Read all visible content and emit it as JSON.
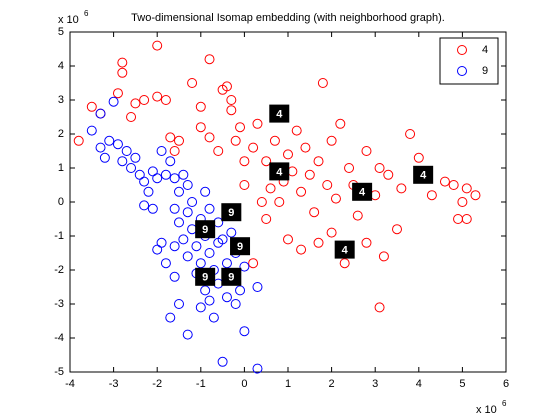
{
  "chart_data": {
    "type": "scatter",
    "title": "Two-dimensional Isomap embedding (with neighborhood graph).",
    "y_scale_label": {
      "base": "x 10",
      "power": "6"
    },
    "x_scale_label": {
      "base": "x 10",
      "power": "6"
    },
    "xlim": [
      -4,
      6
    ],
    "xticks": [
      -4,
      -3,
      -2,
      -1,
      0,
      1,
      2,
      3,
      4,
      5,
      6
    ],
    "ylim": [
      -5,
      5
    ],
    "yticks": [
      -5,
      -4,
      -3,
      -2,
      -1,
      0,
      1,
      2,
      3,
      4,
      5
    ],
    "grid": false,
    "legend": "northeast",
    "series": [
      {
        "name": "4",
        "color": "#ff0000",
        "x": [
          -3.8,
          -3.5,
          -3.3,
          -2.9,
          -2.8,
          -2.8,
          -2.6,
          -2.5,
          -2.3,
          -2.0,
          -2.0,
          -1.8,
          -1.7,
          -1.6,
          -1.5,
          -1.2,
          -1.0,
          -1.0,
          -0.8,
          -0.8,
          -0.6,
          -0.5,
          -0.4,
          -0.3,
          -0.3,
          -0.2,
          -0.1,
          0.0,
          0.0,
          0.2,
          0.3,
          0.4,
          0.5,
          0.5,
          0.6,
          0.7,
          0.8,
          0.9,
          1.0,
          1.0,
          1.1,
          1.2,
          1.3,
          1.3,
          1.4,
          1.5,
          1.6,
          1.7,
          1.8,
          1.9,
          2.0,
          2.0,
          2.1,
          2.2,
          2.3,
          2.4,
          2.5,
          2.6,
          2.8,
          3.0,
          3.1,
          3.2,
          3.3,
          3.1,
          3.5,
          3.6,
          3.8,
          4.0,
          4.0,
          4.3,
          4.6,
          4.8,
          4.9,
          5.0,
          5.1,
          5.1,
          5.3,
          0.2,
          1.7,
          2.8
        ],
        "values": [
          1.8,
          2.8,
          2.6,
          3.2,
          4.1,
          3.8,
          2.5,
          2.9,
          3.0,
          4.6,
          3.1,
          3.0,
          1.9,
          1.5,
          1.8,
          3.5,
          2.8,
          2.2,
          4.2,
          1.9,
          1.5,
          3.3,
          3.4,
          3.0,
          2.7,
          1.8,
          2.2,
          1.2,
          0.5,
          1.6,
          2.3,
          0.0,
          1.2,
          -0.5,
          0.4,
          1.8,
          0.0,
          0.6,
          -1.1,
          1.4,
          0.9,
          2.1,
          -1.4,
          0.3,
          1.6,
          0.8,
          -0.3,
          1.2,
          3.5,
          0.5,
          -0.9,
          1.8,
          0.1,
          2.3,
          -1.8,
          1.0,
          0.5,
          -0.4,
          1.5,
          0.2,
          1.0,
          -1.6,
          0.8,
          -3.1,
          -0.8,
          0.4,
          2.0,
          1.3,
          0.9,
          0.2,
          0.6,
          0.5,
          -0.5,
          0.0,
          0.4,
          -0.5,
          0.2,
          -1.8,
          -1.2,
          -1.2
        ]
      },
      {
        "name": "9",
        "color": "#0000ff",
        "x": [
          -3.5,
          -3.3,
          -3.3,
          -3.2,
          -3.1,
          -2.9,
          -2.8,
          -2.7,
          -2.6,
          -2.5,
          -2.4,
          -2.3,
          -2.2,
          -2.1,
          -2.0,
          -1.9,
          -1.8,
          -1.7,
          -1.6,
          -1.6,
          -1.5,
          -1.5,
          -1.4,
          -1.3,
          -1.3,
          -1.2,
          -1.2,
          -1.1,
          -1.1,
          -1.0,
          -1.0,
          -0.9,
          -0.9,
          -0.8,
          -0.8,
          -0.7,
          -0.7,
          -0.6,
          -0.6,
          -0.5,
          -0.5,
          -0.4,
          -0.4,
          -0.3,
          -0.3,
          -0.2,
          -0.2,
          -0.1,
          0.0,
          0.0,
          0.3,
          0.3,
          -1.6,
          -1.7,
          -1.5,
          -1.9,
          -2.0,
          -1.3,
          -2.1,
          -1.0,
          -3.0,
          -1.3,
          -0.9,
          -1.4,
          -2.3,
          -0.6,
          -1.0,
          -0.8,
          -1.6,
          -1.8
        ],
        "values": [
          2.1,
          2.6,
          1.6,
          1.3,
          1.8,
          1.7,
          1.2,
          1.5,
          1.0,
          1.3,
          0.8,
          0.6,
          0.3,
          0.9,
          0.7,
          1.5,
          0.8,
          1.2,
          0.7,
          -0.2,
          0.3,
          -0.6,
          -1.1,
          -0.3,
          -1.6,
          0.0,
          -0.8,
          -1.3,
          -2.1,
          -0.5,
          -1.8,
          -2.6,
          -1.0,
          -0.2,
          -1.5,
          -2.0,
          -3.4,
          -0.6,
          -2.4,
          -1.1,
          -4.7,
          -1.8,
          -2.8,
          -0.9,
          -2.2,
          -3.0,
          -1.5,
          -2.6,
          -3.8,
          -1.9,
          -4.9,
          -2.5,
          -2.2,
          -3.4,
          -3.0,
          -1.2,
          -1.4,
          -3.9,
          -0.2,
          -3.1,
          2.95,
          0.5,
          0.3,
          0.8,
          -0.1,
          -1.2,
          -2.3,
          -2.9,
          -1.3,
          -1.8
        ]
      }
    ],
    "annotations": [
      {
        "text": "4",
        "x": 0.8,
        "y": 2.6
      },
      {
        "text": "4",
        "x": 0.8,
        "y": 0.9
      },
      {
        "text": "4",
        "x": 2.7,
        "y": 0.3
      },
      {
        "text": "4",
        "x": 4.1,
        "y": 0.8
      },
      {
        "text": "4",
        "x": 2.3,
        "y": -1.4
      },
      {
        "text": "9",
        "x": -0.3,
        "y": -0.3
      },
      {
        "text": "9",
        "x": -0.9,
        "y": -0.8
      },
      {
        "text": "9",
        "x": -0.1,
        "y": -1.3
      },
      {
        "text": "9",
        "x": -0.9,
        "y": -2.2
      },
      {
        "text": "9",
        "x": -0.3,
        "y": -2.2
      }
    ]
  }
}
